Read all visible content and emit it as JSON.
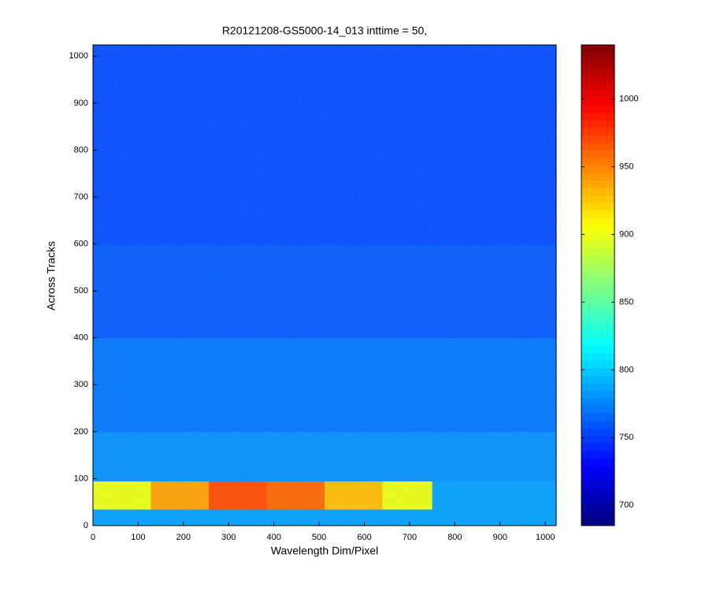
{
  "chart_data": {
    "type": "heatmap",
    "title": "R20121208-GS5000-14_013 inttime = 50,",
    "x_label": "Wavelength Dim/Pixel",
    "y_label": "Across Tracks",
    "x_edges": [
      0,
      128,
      256,
      384,
      512,
      640,
      750,
      1024
    ],
    "y_edges": [
      0,
      35,
      95,
      200,
      400,
      600,
      800,
      1024
    ],
    "values": [
      [
        785,
        785,
        785,
        785,
        785,
        785,
        785
      ],
      [
        900,
        940,
        970,
        960,
        930,
        900,
        785
      ],
      [
        780,
        780,
        780,
        780,
        780,
        780,
        780
      ],
      [
        770,
        770,
        770,
        770,
        770,
        770,
        770
      ],
      [
        760,
        760,
        760,
        760,
        760,
        760,
        760
      ],
      [
        755,
        755,
        755,
        755,
        755,
        755,
        755
      ],
      [
        755,
        755,
        755,
        755,
        755,
        755,
        755
      ]
    ],
    "colormap": "jet",
    "clim": [
      685,
      1040
    ],
    "cbar_ticks": [
      700,
      750,
      800,
      850,
      900,
      950,
      1000
    ],
    "xlim": [
      0,
      1024
    ],
    "ylim": [
      0,
      1024
    ],
    "xticks": [
      0,
      100,
      200,
      300,
      400,
      500,
      600,
      700,
      800,
      900,
      1000
    ],
    "yticks": [
      0,
      100,
      200,
      300,
      400,
      500,
      600,
      700,
      800,
      900,
      1000
    ]
  }
}
